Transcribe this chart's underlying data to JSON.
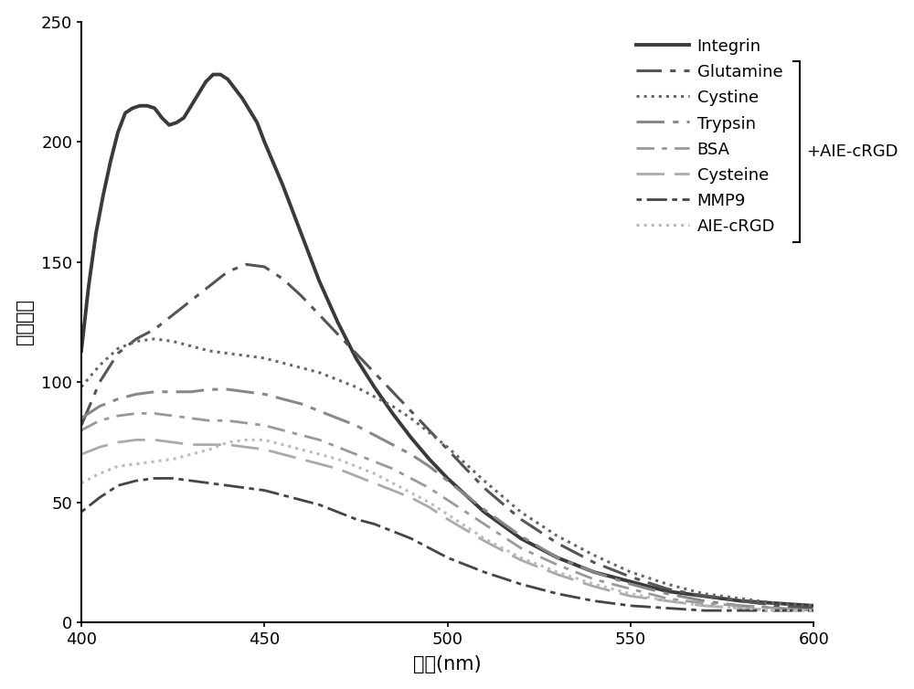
{
  "xlabel": "波长(nm)",
  "ylabel": "荧光强度",
  "xlim": [
    400,
    600
  ],
  "ylim": [
    0,
    250
  ],
  "xticks": [
    400,
    450,
    500,
    550,
    600
  ],
  "yticks": [
    0,
    50,
    100,
    150,
    200,
    250
  ],
  "bracket_label": "+AIE-cRGD",
  "series": [
    {
      "name": "Integrin",
      "color": "#3a3a3a",
      "linestyle": "solid",
      "linewidth": 2.8,
      "dashes": null,
      "x": [
        400,
        402,
        404,
        406,
        408,
        410,
        412,
        414,
        416,
        418,
        420,
        422,
        424,
        426,
        428,
        430,
        432,
        434,
        436,
        438,
        440,
        442,
        444,
        446,
        448,
        450,
        455,
        460,
        465,
        470,
        475,
        480,
        485,
        490,
        495,
        500,
        510,
        520,
        530,
        540,
        550,
        560,
        570,
        580,
        590,
        600
      ],
      "y": [
        113,
        140,
        162,
        178,
        192,
        204,
        212,
        214,
        215,
        215,
        214,
        210,
        207,
        208,
        210,
        215,
        220,
        225,
        228,
        228,
        226,
        222,
        218,
        213,
        208,
        200,
        182,
        162,
        142,
        125,
        110,
        98,
        87,
        77,
        68,
        60,
        46,
        35,
        27,
        21,
        17,
        13,
        11,
        9,
        8,
        7
      ]
    },
    {
      "name": "Glutamine",
      "color": "#555555",
      "linestyle": "dashdot",
      "linewidth": 2.2,
      "dashes": [
        9,
        3,
        2,
        3
      ],
      "x": [
        400,
        405,
        410,
        415,
        420,
        425,
        430,
        435,
        440,
        445,
        450,
        455,
        460,
        465,
        470,
        475,
        480,
        485,
        490,
        495,
        500,
        510,
        520,
        530,
        540,
        550,
        560,
        570,
        580,
        590,
        600
      ],
      "y": [
        82,
        100,
        112,
        118,
        122,
        128,
        134,
        140,
        146,
        149,
        148,
        143,
        136,
        128,
        120,
        112,
        104,
        96,
        88,
        80,
        72,
        56,
        43,
        33,
        25,
        19,
        14,
        11,
        9,
        7,
        6
      ]
    },
    {
      "name": "Cystine",
      "color": "#666666",
      "linestyle": "dotted",
      "linewidth": 2.2,
      "dashes": null,
      "x": [
        400,
        405,
        410,
        415,
        420,
        425,
        430,
        435,
        440,
        445,
        450,
        455,
        460,
        465,
        470,
        475,
        480,
        485,
        490,
        495,
        500,
        510,
        520,
        530,
        540,
        550,
        560,
        570,
        580,
        590,
        600
      ],
      "y": [
        98,
        107,
        114,
        117,
        118,
        117,
        115,
        113,
        112,
        111,
        110,
        108,
        106,
        104,
        101,
        98,
        94,
        90,
        85,
        79,
        73,
        59,
        46,
        36,
        28,
        21,
        16,
        12,
        10,
        8,
        7
      ]
    },
    {
      "name": "Trypsin",
      "color": "#888888",
      "linestyle": "dashdot",
      "linewidth": 2.2,
      "dashes": [
        10,
        3,
        2,
        3
      ],
      "x": [
        400,
        405,
        410,
        415,
        420,
        425,
        430,
        435,
        440,
        445,
        450,
        455,
        460,
        465,
        470,
        475,
        480,
        485,
        490,
        495,
        500,
        510,
        520,
        530,
        540,
        550,
        560,
        570,
        580,
        590,
        600
      ],
      "y": [
        85,
        90,
        93,
        95,
        96,
        96,
        96,
        97,
        97,
        96,
        95,
        93,
        91,
        88,
        85,
        82,
        78,
        74,
        70,
        65,
        59,
        47,
        36,
        27,
        21,
        16,
        12,
        9,
        7,
        6,
        5
      ]
    },
    {
      "name": "BSA",
      "color": "#999999",
      "linestyle": "dashdot",
      "linewidth": 2.0,
      "dashes": [
        7,
        3,
        2,
        3
      ],
      "x": [
        400,
        405,
        410,
        415,
        420,
        425,
        430,
        435,
        440,
        445,
        450,
        455,
        460,
        465,
        470,
        475,
        480,
        485,
        490,
        495,
        500,
        510,
        520,
        530,
        540,
        550,
        560,
        570,
        580,
        590,
        600
      ],
      "y": [
        80,
        84,
        86,
        87,
        87,
        86,
        85,
        84,
        84,
        83,
        82,
        80,
        78,
        76,
        73,
        70,
        67,
        64,
        60,
        56,
        51,
        41,
        31,
        24,
        18,
        14,
        10,
        8,
        7,
        6,
        5
      ]
    },
    {
      "name": "Cysteine",
      "color": "#aaaaaa",
      "linestyle": "dashed",
      "linewidth": 2.0,
      "dashes": [
        11,
        4
      ],
      "x": [
        400,
        405,
        410,
        415,
        420,
        425,
        430,
        435,
        440,
        445,
        450,
        455,
        460,
        465,
        470,
        475,
        480,
        485,
        490,
        495,
        500,
        510,
        520,
        530,
        540,
        550,
        560,
        570,
        580,
        590,
        600
      ],
      "y": [
        70,
        73,
        75,
        76,
        76,
        75,
        74,
        74,
        74,
        73,
        72,
        70,
        68,
        66,
        64,
        61,
        58,
        55,
        52,
        48,
        43,
        34,
        26,
        20,
        15,
        11,
        9,
        7,
        6,
        5,
        5
      ]
    },
    {
      "name": "MMP9",
      "color": "#444444",
      "linestyle": "dashdot",
      "linewidth": 2.0,
      "dashes": [
        2,
        2,
        8,
        2
      ],
      "x": [
        400,
        405,
        410,
        415,
        420,
        425,
        430,
        435,
        440,
        445,
        450,
        455,
        460,
        465,
        470,
        475,
        480,
        485,
        490,
        495,
        500,
        510,
        520,
        530,
        540,
        550,
        560,
        570,
        580,
        590,
        600
      ],
      "y": [
        46,
        52,
        57,
        59,
        60,
        60,
        59,
        58,
        57,
        56,
        55,
        53,
        51,
        49,
        46,
        43,
        41,
        38,
        35,
        31,
        27,
        21,
        16,
        12,
        9,
        7,
        6,
        5,
        5,
        5,
        5
      ]
    },
    {
      "name": "AIE-cRGD",
      "color": "#bbbbbb",
      "linestyle": "dotted",
      "linewidth": 2.2,
      "dashes": null,
      "x": [
        400,
        405,
        410,
        415,
        420,
        425,
        430,
        435,
        440,
        445,
        450,
        455,
        460,
        465,
        470,
        475,
        480,
        485,
        490,
        495,
        500,
        510,
        520,
        530,
        540,
        550,
        560,
        570,
        580,
        590,
        600
      ],
      "y": [
        58,
        62,
        65,
        66,
        67,
        68,
        70,
        72,
        75,
        76,
        76,
        74,
        72,
        70,
        68,
        65,
        62,
        58,
        54,
        50,
        45,
        35,
        27,
        21,
        16,
        12,
        9,
        7,
        6,
        5,
        5
      ]
    }
  ]
}
